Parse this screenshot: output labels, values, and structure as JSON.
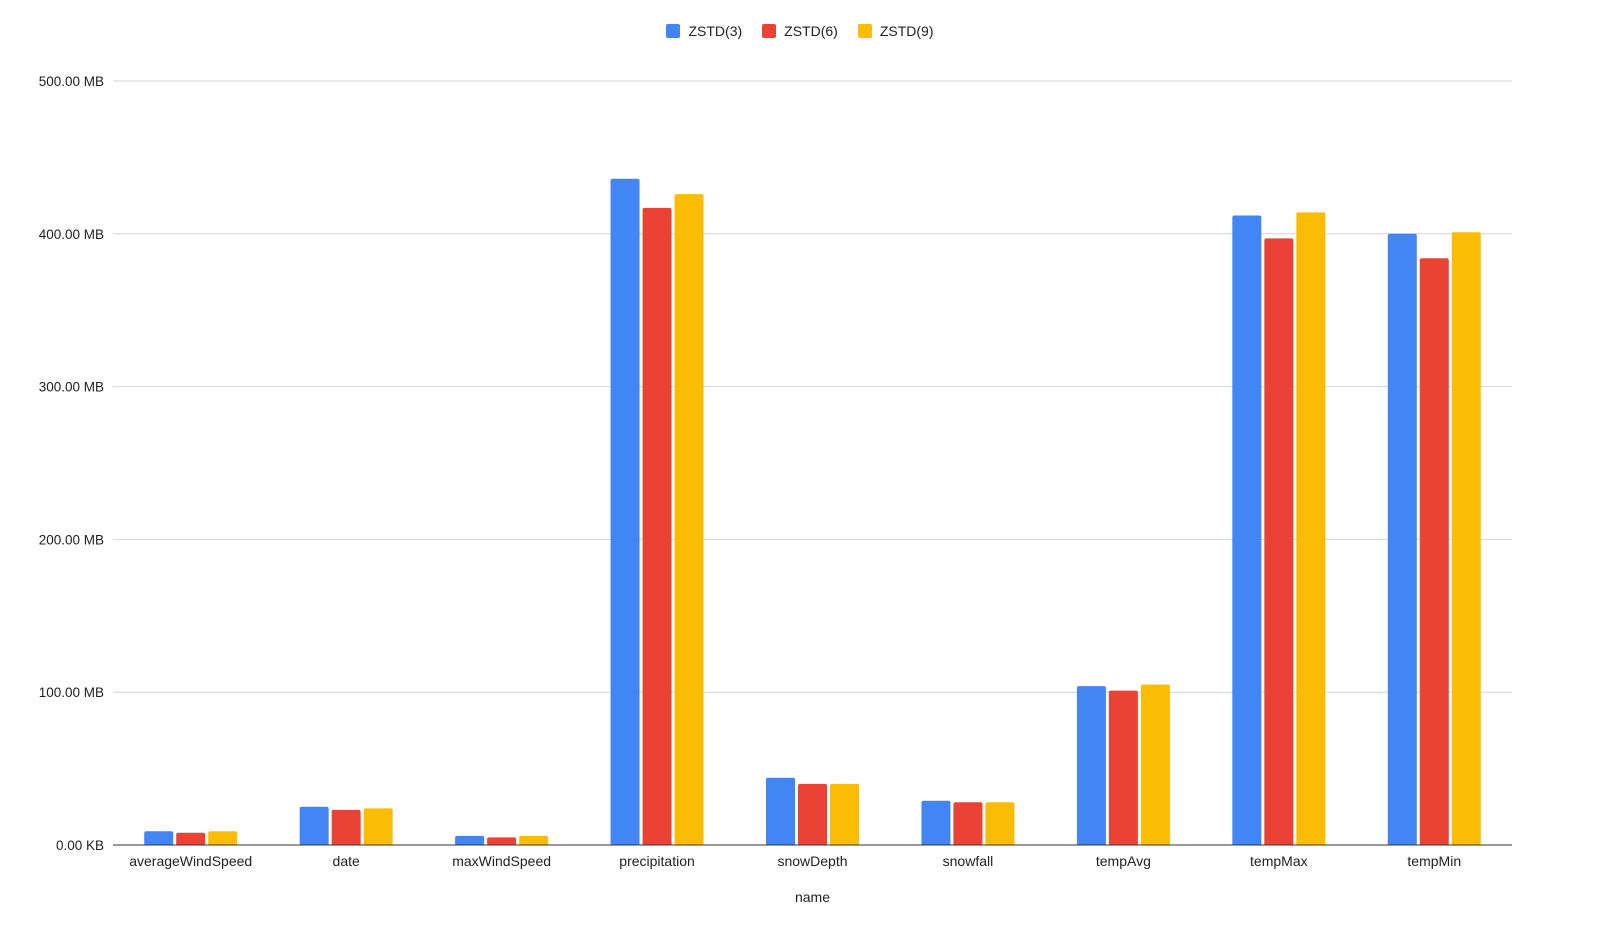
{
  "chart_data": {
    "type": "bar",
    "xlabel": "name",
    "ylabel": "",
    "ylim": [
      0,
      500
    ],
    "unit": "MB",
    "y_ticks": [
      {
        "value": 0,
        "label": "0.00 KB"
      },
      {
        "value": 100,
        "label": "100.00 MB"
      },
      {
        "value": 200,
        "label": "200.00 MB"
      },
      {
        "value": 300,
        "label": "300.00 MB"
      },
      {
        "value": 400,
        "label": "400.00 MB"
      },
      {
        "value": 500,
        "label": "500.00 MB"
      }
    ],
    "categories": [
      "averageWindSpeed",
      "date",
      "maxWindSpeed",
      "precipitation",
      "snowDepth",
      "snowfall",
      "tempAvg",
      "tempMax",
      "tempMin"
    ],
    "series": [
      {
        "name": "ZSTD(3)",
        "color": "#4285F4",
        "values": [
          9,
          25,
          6,
          436,
          44,
          29,
          104,
          412,
          400
        ]
      },
      {
        "name": "ZSTD(6)",
        "color": "#EA4335",
        "values": [
          8,
          23,
          5,
          417,
          40,
          28,
          101,
          397,
          384
        ]
      },
      {
        "name": "ZSTD(9)",
        "color": "#FBBC04",
        "values": [
          9,
          24,
          6,
          426,
          40,
          28,
          105,
          414,
          401
        ]
      }
    ],
    "grid": true,
    "legend_position": "top"
  }
}
